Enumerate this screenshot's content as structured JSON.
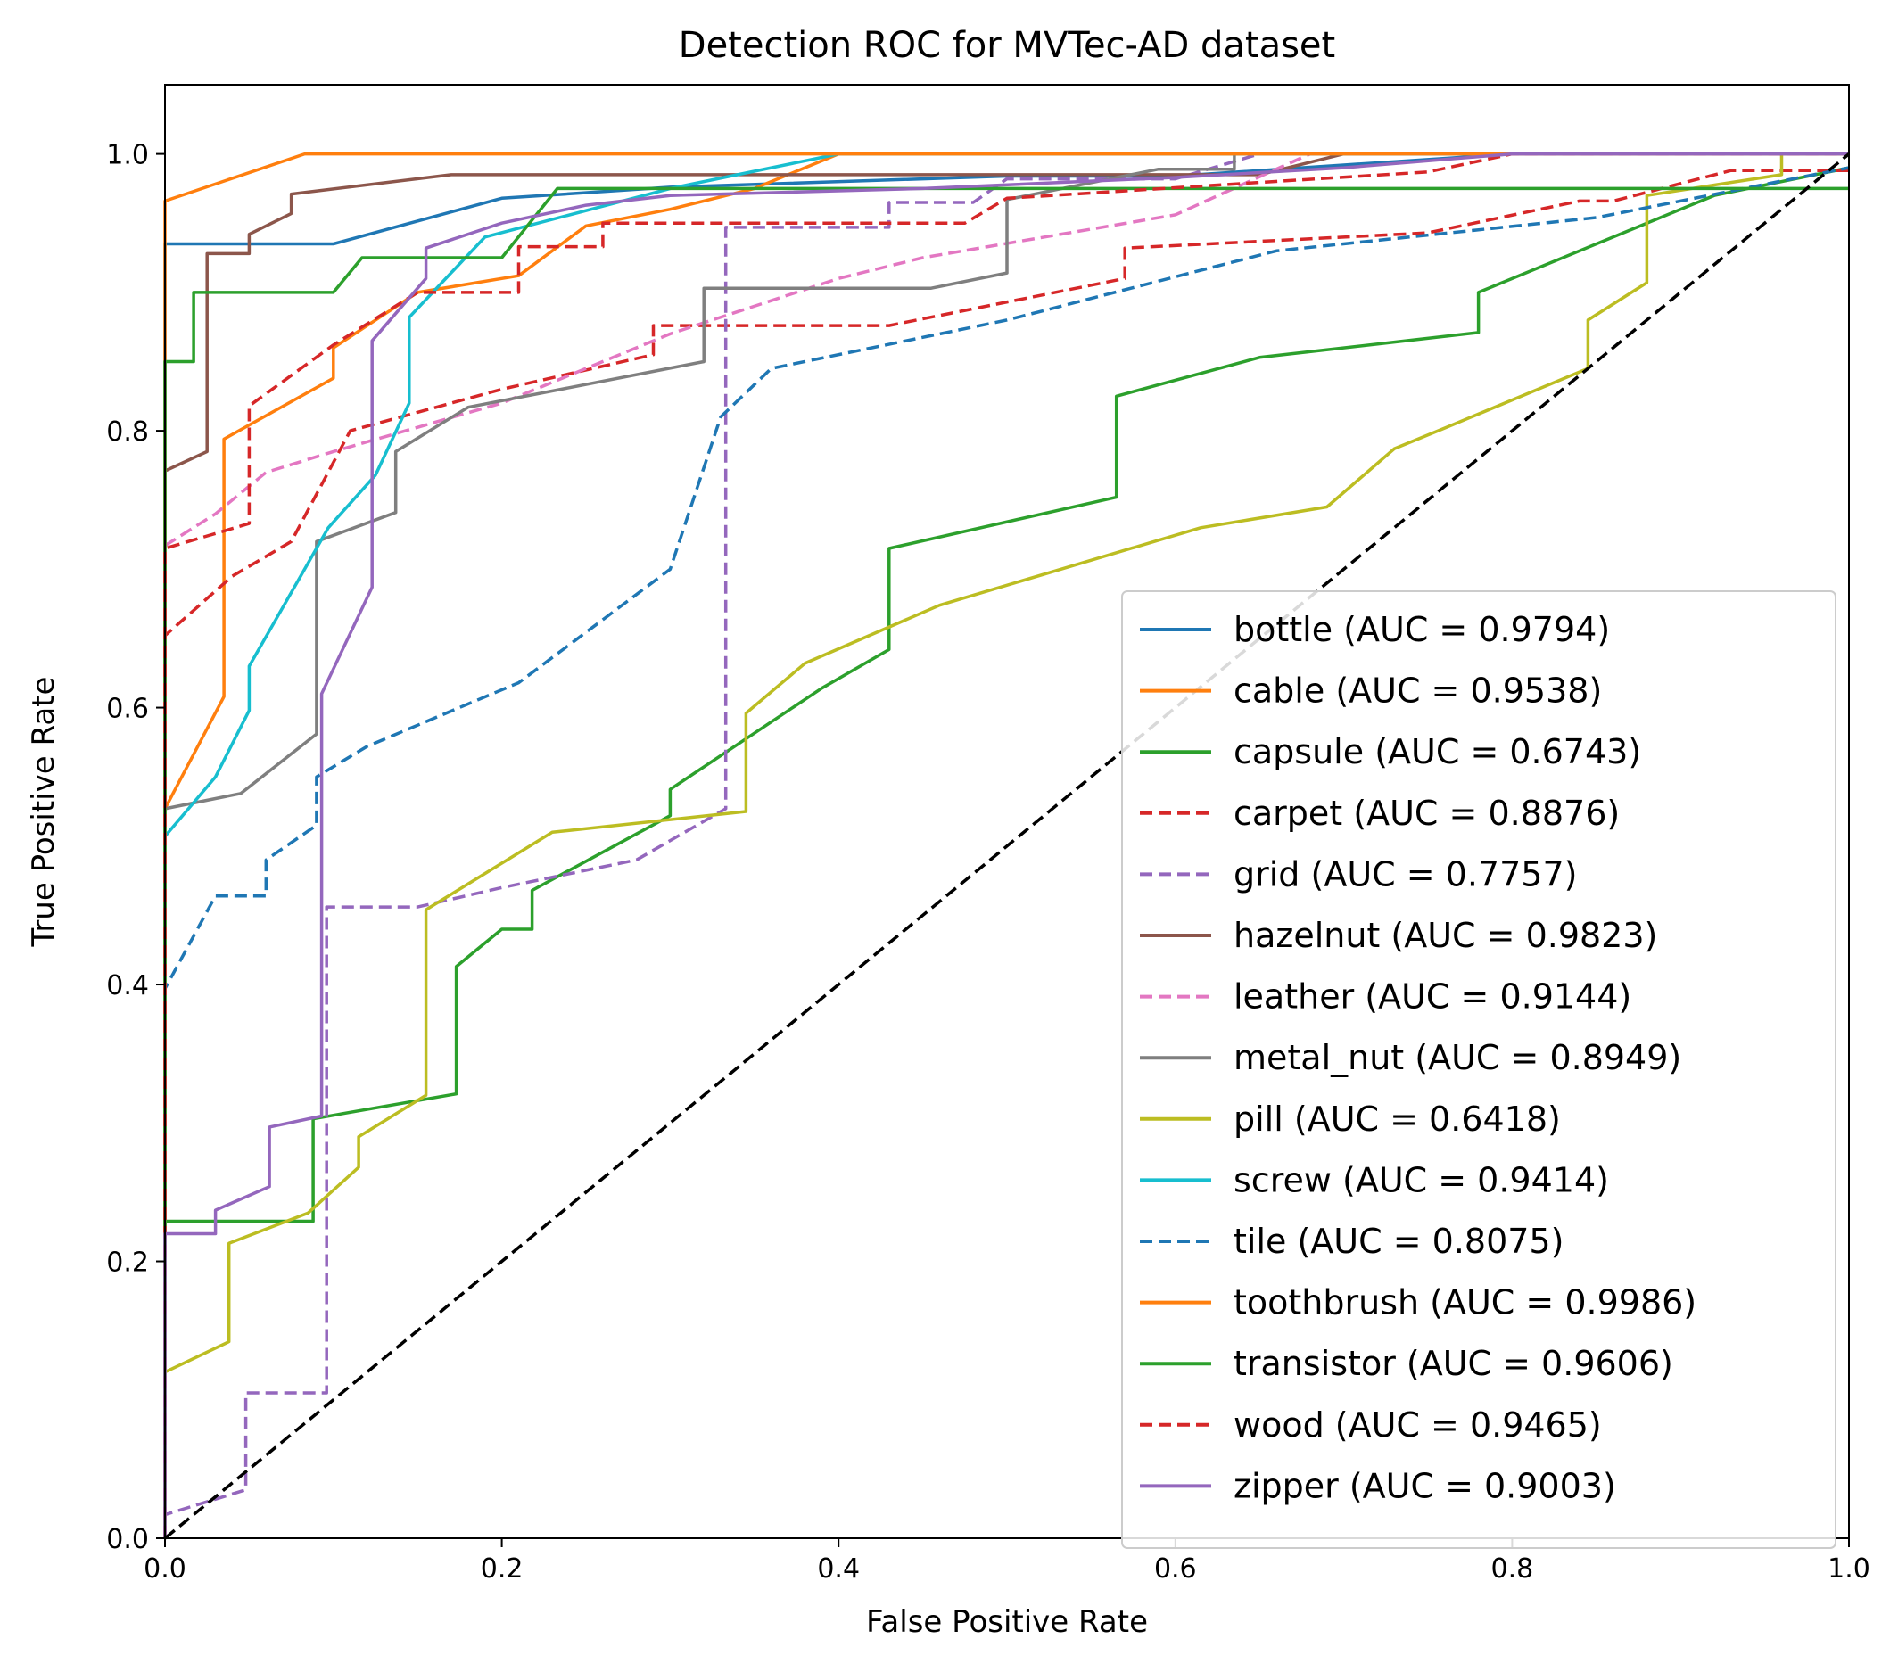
{
  "chart_data": {
    "type": "line",
    "title": "Detection ROC for MVTec-AD dataset",
    "xlabel": "False Positive Rate",
    "ylabel": "True Positive Rate",
    "xlim": [
      0,
      1
    ],
    "ylim": [
      0,
      1.05
    ],
    "xticks": [
      0.0,
      0.2,
      0.4,
      0.6,
      0.8,
      1.0
    ],
    "yticks": [
      0.0,
      0.2,
      0.4,
      0.6,
      0.8,
      1.0
    ],
    "xtick_labels": [
      "0.0",
      "0.2",
      "0.4",
      "0.6",
      "0.8",
      "1.0"
    ],
    "ytick_labels": [
      "0.0",
      "0.2",
      "0.4",
      "0.6",
      "0.8",
      "1.0"
    ],
    "legend_position": "lower-right",
    "grid": false,
    "series": [
      {
        "name": "bottle",
        "label": "bottle (AUC = 0.9794)",
        "color": "#1f77b4",
        "dash": "solid",
        "points": [
          [
            0,
            0
          ],
          [
            0,
            0.935
          ],
          [
            0.1,
            0.935
          ],
          [
            0.2,
            0.968
          ],
          [
            0.3,
            0.976
          ],
          [
            0.5,
            0.984
          ],
          [
            0.6,
            0.984
          ],
          [
            0.7,
            0.992
          ],
          [
            0.8,
            1.0
          ],
          [
            1.0,
            1.0
          ]
        ]
      },
      {
        "name": "cable",
        "label": "cable (AUC = 0.9538)",
        "color": "#ff7f0e",
        "dash": "solid",
        "points": [
          [
            0,
            0
          ],
          [
            0,
            0.527
          ],
          [
            0.035,
            0.608
          ],
          [
            0.035,
            0.794
          ],
          [
            0.1,
            0.838
          ],
          [
            0.1,
            0.86
          ],
          [
            0.15,
            0.9
          ],
          [
            0.21,
            0.912
          ],
          [
            0.25,
            0.948
          ],
          [
            0.3,
            0.96
          ],
          [
            0.35,
            0.975
          ],
          [
            0.4,
            1.0
          ],
          [
            1.0,
            1.0
          ]
        ]
      },
      {
        "name": "capsule",
        "label": "capsule (AUC = 0.6743)",
        "color": "#2ca02c",
        "dash": "solid",
        "points": [
          [
            0,
            0
          ],
          [
            0,
            0.229
          ],
          [
            0.088,
            0.229
          ],
          [
            0.088,
            0.303
          ],
          [
            0.173,
            0.321
          ],
          [
            0.173,
            0.413
          ],
          [
            0.2,
            0.44
          ],
          [
            0.218,
            0.44
          ],
          [
            0.218,
            0.468
          ],
          [
            0.3,
            0.522
          ],
          [
            0.3,
            0.541
          ],
          [
            0.39,
            0.614
          ],
          [
            0.43,
            0.642
          ],
          [
            0.43,
            0.715
          ],
          [
            0.565,
            0.752
          ],
          [
            0.565,
            0.825
          ],
          [
            0.65,
            0.853
          ],
          [
            0.78,
            0.871
          ],
          [
            0.78,
            0.9
          ],
          [
            0.87,
            0.945
          ],
          [
            0.92,
            0.97
          ],
          [
            1.0,
            0.99
          ]
        ]
      },
      {
        "name": "carpet",
        "label": "carpet (AUC = 0.8876)",
        "color": "#d62728",
        "dash": "dashed",
        "points": [
          [
            0,
            0
          ],
          [
            0,
            0.652
          ],
          [
            0.04,
            0.695
          ],
          [
            0.075,
            0.72
          ],
          [
            0.11,
            0.8
          ],
          [
            0.2,
            0.83
          ],
          [
            0.29,
            0.855
          ],
          [
            0.29,
            0.876
          ],
          [
            0.43,
            0.876
          ],
          [
            0.57,
            0.91
          ],
          [
            0.57,
            0.932
          ],
          [
            0.75,
            0.943
          ],
          [
            0.84,
            0.966
          ],
          [
            0.86,
            0.966
          ],
          [
            0.93,
            0.988
          ],
          [
            1.0,
            0.988
          ]
        ]
      },
      {
        "name": "grid",
        "label": "grid (AUC = 0.7757)",
        "color": "#9467bd",
        "dash": "dashed",
        "points": [
          [
            0,
            0
          ],
          [
            0,
            0.017
          ],
          [
            0.048,
            0.035
          ],
          [
            0.048,
            0.105
          ],
          [
            0.096,
            0.105
          ],
          [
            0.096,
            0.456
          ],
          [
            0.15,
            0.456
          ],
          [
            0.2,
            0.47
          ],
          [
            0.28,
            0.49
          ],
          [
            0.333,
            0.527
          ],
          [
            0.333,
            0.947
          ],
          [
            0.43,
            0.947
          ],
          [
            0.43,
            0.965
          ],
          [
            0.48,
            0.965
          ],
          [
            0.5,
            0.982
          ],
          [
            0.6,
            0.982
          ],
          [
            0.65,
            1.0
          ],
          [
            1.0,
            1.0
          ]
        ]
      },
      {
        "name": "hazelnut",
        "label": "hazelnut (AUC = 0.9823)",
        "color": "#8c564b",
        "dash": "solid",
        "points": [
          [
            0,
            0
          ],
          [
            0,
            0.771
          ],
          [
            0.025,
            0.785
          ],
          [
            0.025,
            0.928
          ],
          [
            0.05,
            0.928
          ],
          [
            0.05,
            0.942
          ],
          [
            0.075,
            0.957
          ],
          [
            0.075,
            0.971
          ],
          [
            0.17,
            0.985
          ],
          [
            0.65,
            0.985
          ],
          [
            0.7,
            1.0
          ],
          [
            1.0,
            1.0
          ]
        ]
      },
      {
        "name": "leather",
        "label": "leather (AUC = 0.9144)",
        "color": "#e377c2",
        "dash": "dashed",
        "points": [
          [
            0,
            0
          ],
          [
            0,
            0.717
          ],
          [
            0.03,
            0.74
          ],
          [
            0.06,
            0.77
          ],
          [
            0.1,
            0.785
          ],
          [
            0.2,
            0.82
          ],
          [
            0.3,
            0.87
          ],
          [
            0.4,
            0.91
          ],
          [
            0.45,
            0.925
          ],
          [
            0.6,
            0.956
          ],
          [
            0.68,
            1.0
          ],
          [
            1.0,
            1.0
          ]
        ]
      },
      {
        "name": "metal_nut",
        "label": "metal_nut (AUC = 0.8949)",
        "color": "#7f7f7f",
        "dash": "solid",
        "points": [
          [
            0,
            0
          ],
          [
            0,
            0.527
          ],
          [
            0.045,
            0.538
          ],
          [
            0.09,
            0.581
          ],
          [
            0.09,
            0.72
          ],
          [
            0.137,
            0.741
          ],
          [
            0.137,
            0.785
          ],
          [
            0.18,
            0.817
          ],
          [
            0.32,
            0.85
          ],
          [
            0.32,
            0.903
          ],
          [
            0.455,
            0.903
          ],
          [
            0.5,
            0.914
          ],
          [
            0.5,
            0.967
          ],
          [
            0.59,
            0.989
          ],
          [
            0.635,
            0.989
          ],
          [
            0.635,
            1.0
          ],
          [
            1.0,
            1.0
          ]
        ]
      },
      {
        "name": "pill",
        "label": "pill (AUC = 0.6418)",
        "color": "#bcbd22",
        "dash": "solid",
        "points": [
          [
            0,
            0
          ],
          [
            0,
            0.12
          ],
          [
            0.038,
            0.142
          ],
          [
            0.038,
            0.213
          ],
          [
            0.085,
            0.235
          ],
          [
            0.115,
            0.268
          ],
          [
            0.115,
            0.29
          ],
          [
            0.155,
            0.32
          ],
          [
            0.155,
            0.454
          ],
          [
            0.23,
            0.51
          ],
          [
            0.345,
            0.525
          ],
          [
            0.345,
            0.596
          ],
          [
            0.38,
            0.632
          ],
          [
            0.46,
            0.674
          ],
          [
            0.615,
            0.73
          ],
          [
            0.69,
            0.745
          ],
          [
            0.73,
            0.787
          ],
          [
            0.76,
            0.802
          ],
          [
            0.845,
            0.845
          ],
          [
            0.845,
            0.88
          ],
          [
            0.88,
            0.907
          ],
          [
            0.88,
            0.97
          ],
          [
            0.96,
            0.985
          ],
          [
            0.96,
            1.0
          ],
          [
            1.0,
            1.0
          ]
        ]
      },
      {
        "name": "screw",
        "label": "screw (AUC = 0.9414)",
        "color": "#17becf",
        "dash": "solid",
        "points": [
          [
            0,
            0
          ],
          [
            0,
            0.507
          ],
          [
            0.03,
            0.55
          ],
          [
            0.05,
            0.598
          ],
          [
            0.05,
            0.63
          ],
          [
            0.097,
            0.73
          ],
          [
            0.125,
            0.768
          ],
          [
            0.145,
            0.82
          ],
          [
            0.145,
            0.882
          ],
          [
            0.19,
            0.94
          ],
          [
            0.3,
            0.975
          ],
          [
            0.4,
            1.0
          ],
          [
            1.0,
            1.0
          ]
        ]
      },
      {
        "name": "tile",
        "label": "tile (AUC = 0.8075)",
        "color": "#1f77b4",
        "dash": "dashed",
        "points": [
          [
            0,
            0
          ],
          [
            0,
            0.397
          ],
          [
            0.03,
            0.464
          ],
          [
            0.06,
            0.464
          ],
          [
            0.06,
            0.49
          ],
          [
            0.09,
            0.515
          ],
          [
            0.09,
            0.55
          ],
          [
            0.12,
            0.572
          ],
          [
            0.21,
            0.618
          ],
          [
            0.3,
            0.7
          ],
          [
            0.33,
            0.81
          ],
          [
            0.36,
            0.845
          ],
          [
            0.5,
            0.88
          ],
          [
            0.66,
            0.93
          ],
          [
            0.85,
            0.954
          ],
          [
            1.0,
            0.99
          ]
        ]
      },
      {
        "name": "toothbrush",
        "label": "toothbrush (AUC = 0.9986)",
        "color": "#ff7f0e",
        "dash": "solid",
        "points": [
          [
            0,
            0
          ],
          [
            0,
            0.966
          ],
          [
            0.083,
            1.0
          ],
          [
            1.0,
            1.0
          ]
        ]
      },
      {
        "name": "transistor",
        "label": "transistor (AUC = 0.9606)",
        "color": "#2ca02c",
        "dash": "solid",
        "points": [
          [
            0,
            0
          ],
          [
            0,
            0.85
          ],
          [
            0.017,
            0.85
          ],
          [
            0.017,
            0.9
          ],
          [
            0.1,
            0.9
          ],
          [
            0.117,
            0.925
          ],
          [
            0.2,
            0.925
          ],
          [
            0.233,
            0.975
          ],
          [
            1.0,
            0.975
          ]
        ]
      },
      {
        "name": "wood",
        "label": "wood (AUC = 0.9465)",
        "color": "#d62728",
        "dash": "dashed",
        "points": [
          [
            0,
            0
          ],
          [
            0,
            0.715
          ],
          [
            0.05,
            0.733
          ],
          [
            0.05,
            0.818
          ],
          [
            0.1,
            0.862
          ],
          [
            0.15,
            0.9
          ],
          [
            0.21,
            0.9
          ],
          [
            0.21,
            0.933
          ],
          [
            0.26,
            0.933
          ],
          [
            0.26,
            0.95
          ],
          [
            0.475,
            0.95
          ],
          [
            0.5,
            0.968
          ],
          [
            0.75,
            0.987
          ],
          [
            0.8,
            1.0
          ],
          [
            1.0,
            1.0
          ]
        ]
      },
      {
        "name": "zipper",
        "label": "zipper (AUC = 0.9003)",
        "color": "#9467bd",
        "dash": "solid",
        "points": [
          [
            0,
            0
          ],
          [
            0,
            0.22
          ],
          [
            0.03,
            0.22
          ],
          [
            0.03,
            0.237
          ],
          [
            0.062,
            0.254
          ],
          [
            0.062,
            0.297
          ],
          [
            0.093,
            0.305
          ],
          [
            0.093,
            0.61
          ],
          [
            0.123,
            0.687
          ],
          [
            0.123,
            0.865
          ],
          [
            0.155,
            0.91
          ],
          [
            0.155,
            0.932
          ],
          [
            0.2,
            0.95
          ],
          [
            0.25,
            0.963
          ],
          [
            0.3,
            0.97
          ],
          [
            0.45,
            0.975
          ],
          [
            0.6,
            0.983
          ],
          [
            0.7,
            0.99
          ],
          [
            0.8,
            1.0
          ],
          [
            1.0,
            1.0
          ]
        ]
      },
      {
        "name": "chance",
        "label": "",
        "color": "#000000",
        "dash": "dashed",
        "legend": false,
        "points": [
          [
            0,
            0
          ],
          [
            1,
            1
          ]
        ]
      }
    ]
  }
}
